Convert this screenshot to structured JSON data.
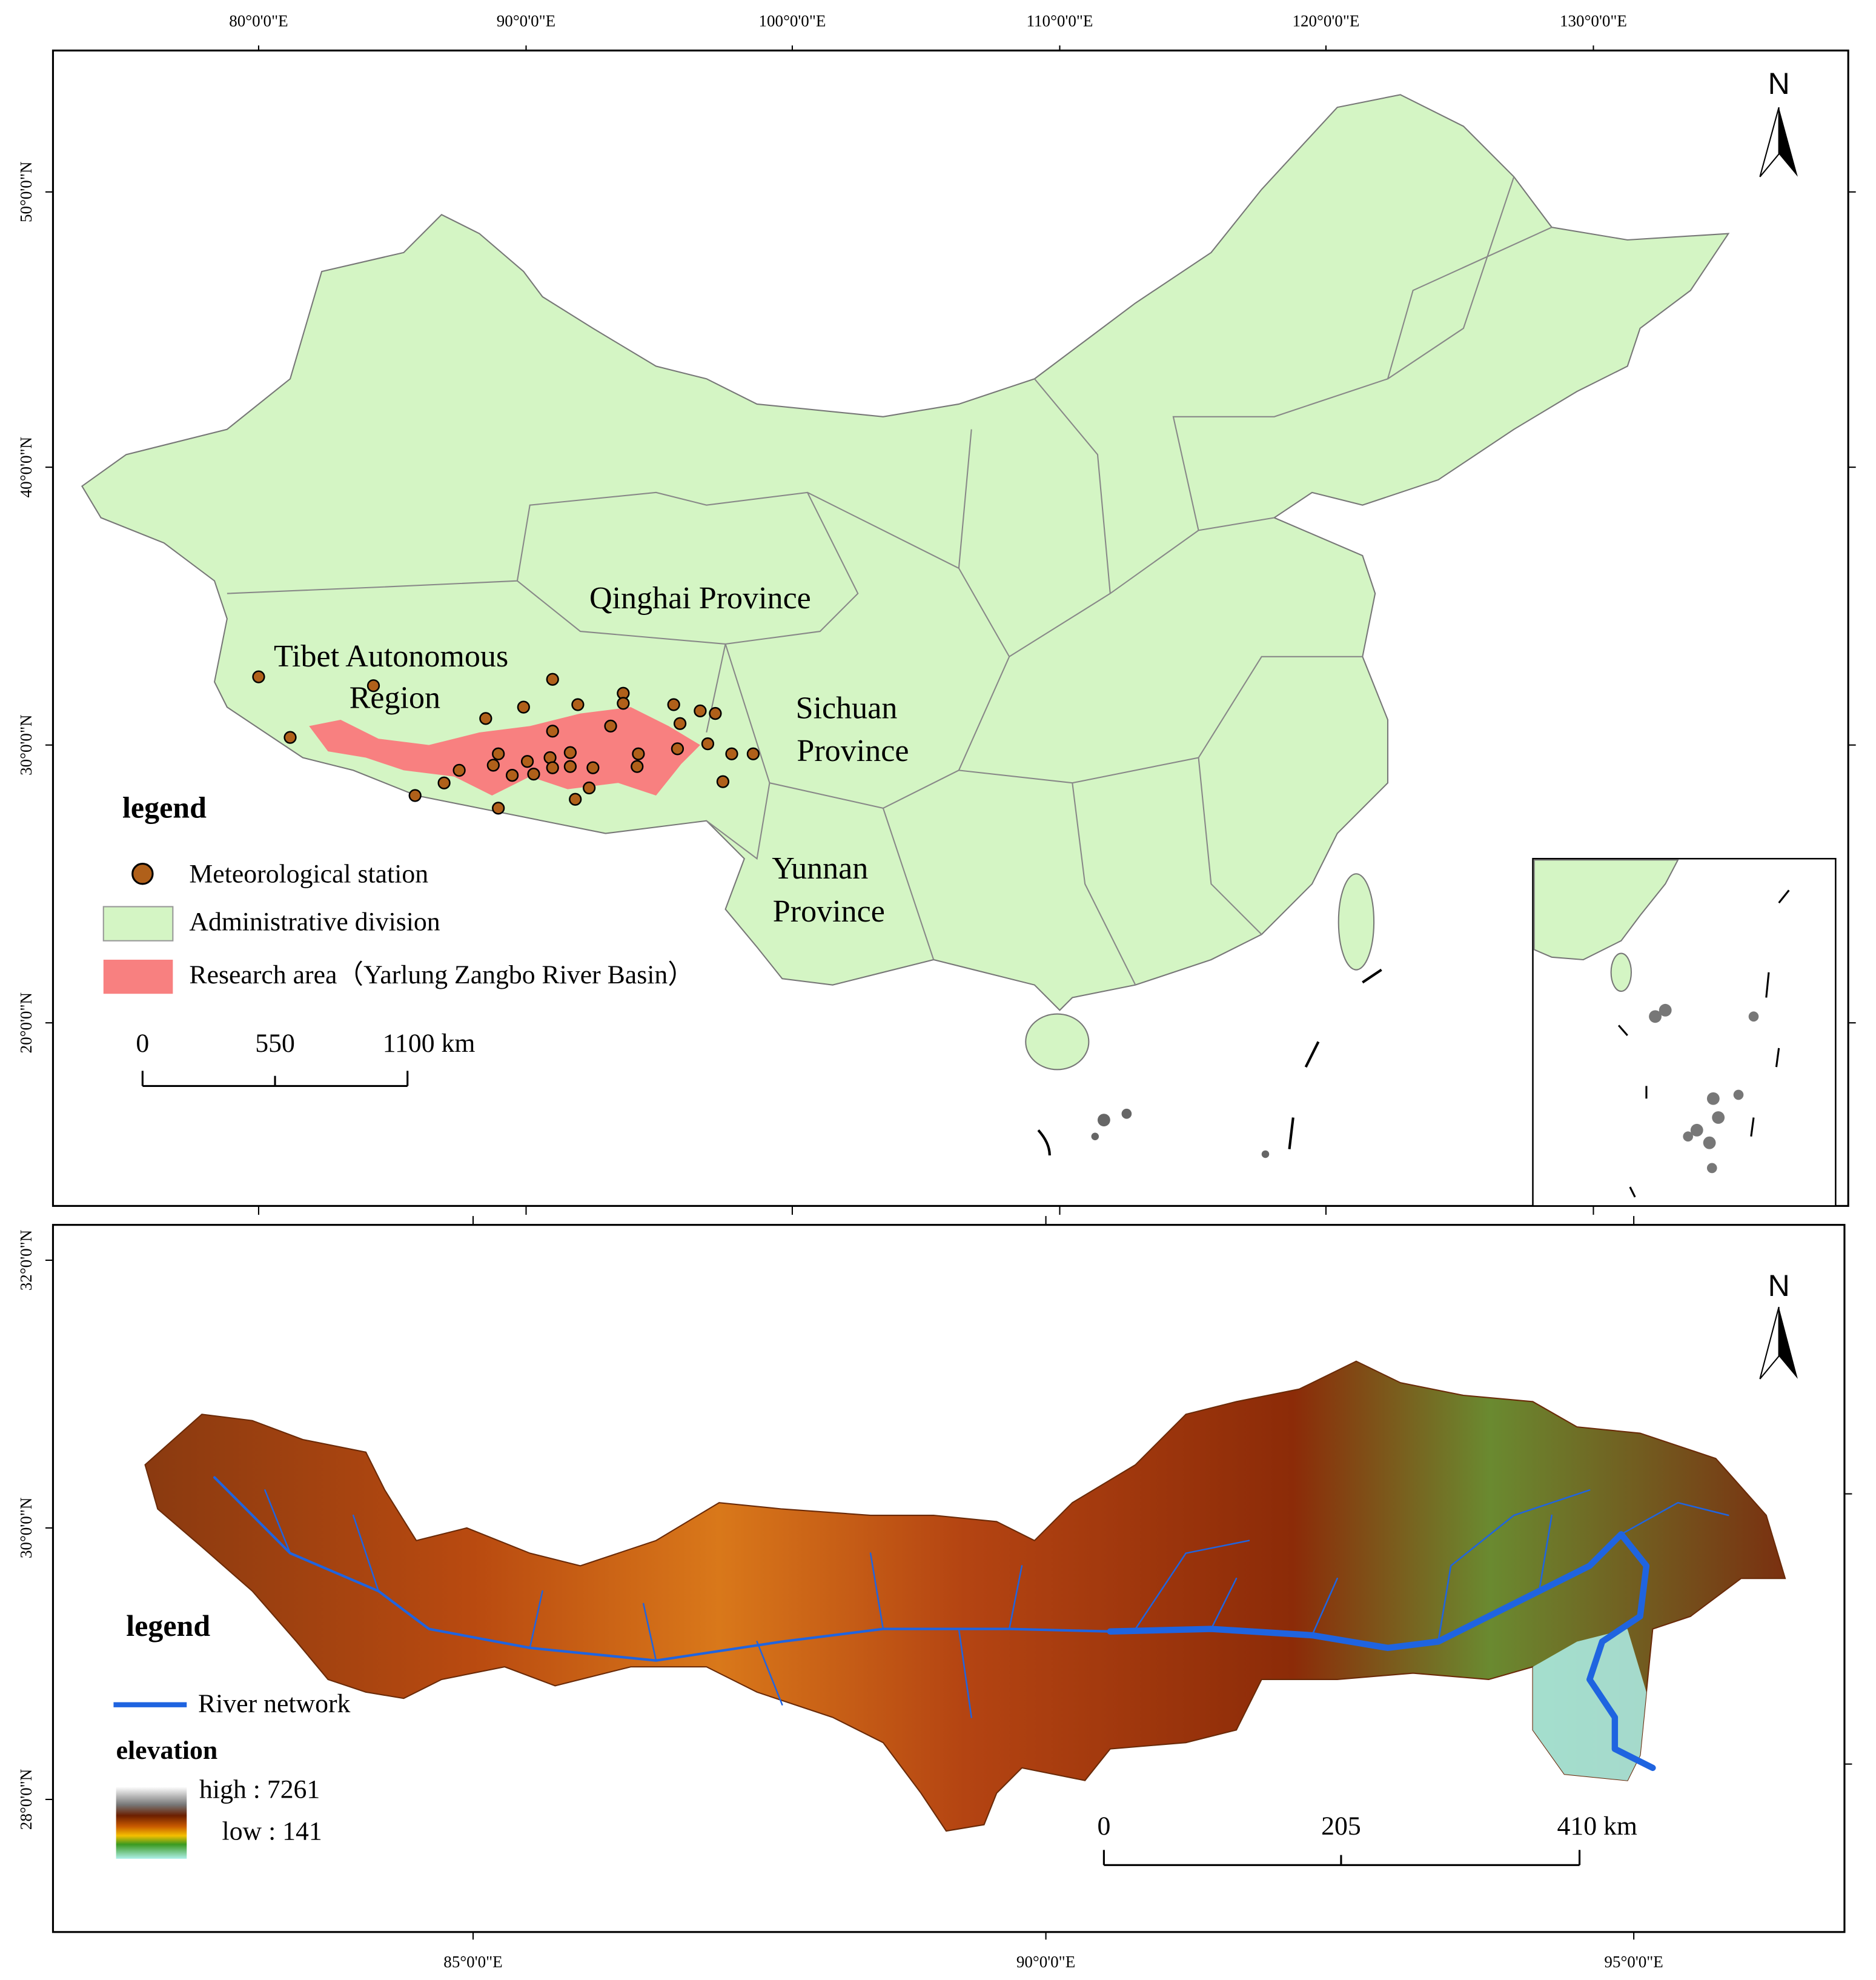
{
  "top_map": {
    "x_labels": [
      "80°0'0\"E",
      "90°0'0\"E",
      "100°0'0\"E",
      "110°0'0\"E",
      "120°0'0\"E",
      "130°0'0\"E"
    ],
    "y_labels": [
      "50°0'0\"N",
      "40°0'0\"N",
      "30°0'0\"N",
      "20°0'0\"N"
    ],
    "north": "N",
    "places": {
      "qinghai": "Qinghai Province",
      "tibet": [
        "Tibet Autonomous",
        "Region"
      ],
      "sichuan": [
        "Sichuan",
        "Province"
      ],
      "yunnan": [
        "Yunnan",
        "Province"
      ]
    },
    "legend": {
      "title": "legend",
      "items": [
        "Meteorological station",
        "Administrative division",
        "Research area（Yarlung Zangbo River Basin）"
      ]
    },
    "scale_bar": [
      "0",
      "550",
      "1100 km"
    ]
  },
  "bottom_map": {
    "x_labels": [
      "85°0'0\"E",
      "90°0'0\"E",
      "95°0'0\"E"
    ],
    "y_labels": [
      "32°0'0\"N",
      "30°0'0\"N",
      "28°0'0\"N"
    ],
    "north": "N",
    "legend": {
      "title": "legend",
      "river": "River network",
      "elevation_title": "elevation",
      "high": "high : 7261",
      "low": "low : 141"
    },
    "scale_bar": [
      "0",
      "205",
      "410 km"
    ]
  }
}
